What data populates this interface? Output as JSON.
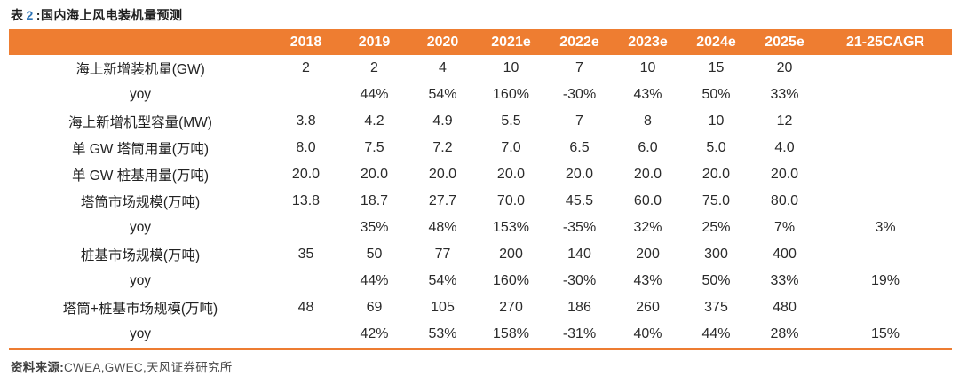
{
  "title": {
    "prefix": "表",
    "number": "2",
    "colon": ":",
    "text": "国内海上风电装机量预测"
  },
  "table": {
    "columns": [
      "2018",
      "2019",
      "2020",
      "2021e",
      "2022e",
      "2023e",
      "2024e",
      "2025e",
      "21-25CAGR"
    ],
    "rows": [
      {
        "label": "海上新增装机量(GW)",
        "values": [
          "2",
          "2",
          "4",
          "10",
          "7",
          "10",
          "15",
          "20",
          ""
        ]
      },
      {
        "label": "yoy",
        "values": [
          "",
          "44%",
          "54%",
          "160%",
          "-30%",
          "43%",
          "50%",
          "33%",
          ""
        ]
      },
      {
        "label": "海上新增机型容量(MW)",
        "values": [
          "3.8",
          "4.2",
          "4.9",
          "5.5",
          "7",
          "8",
          "10",
          "12",
          ""
        ]
      },
      {
        "label": "单 GW 塔筒用量(万吨)",
        "values": [
          "8.0",
          "7.5",
          "7.2",
          "7.0",
          "6.5",
          "6.0",
          "5.0",
          "4.0",
          ""
        ]
      },
      {
        "label": "单 GW 桩基用量(万吨)",
        "values": [
          "20.0",
          "20.0",
          "20.0",
          "20.0",
          "20.0",
          "20.0",
          "20.0",
          "20.0",
          ""
        ]
      },
      {
        "label": "塔筒市场规模(万吨)",
        "values": [
          "13.8",
          "18.7",
          "27.7",
          "70.0",
          "45.5",
          "60.0",
          "75.0",
          "80.0",
          ""
        ]
      },
      {
        "label": "yoy",
        "values": [
          "",
          "35%",
          "48%",
          "153%",
          "-35%",
          "32%",
          "25%",
          "7%",
          "3%"
        ]
      },
      {
        "label": "桩基市场规模(万吨)",
        "values": [
          "35",
          "50",
          "77",
          "200",
          "140",
          "200",
          "300",
          "400",
          ""
        ]
      },
      {
        "label": "yoy",
        "values": [
          "",
          "44%",
          "54%",
          "160%",
          "-30%",
          "43%",
          "50%",
          "33%",
          "19%"
        ]
      },
      {
        "label": "塔筒+桩基市场规模(万吨)",
        "values": [
          "48",
          "69",
          "105",
          "270",
          "186",
          "260",
          "375",
          "480",
          ""
        ]
      },
      {
        "label": "yoy",
        "values": [
          "",
          "42%",
          "53%",
          "158%",
          "-31%",
          "40%",
          "44%",
          "28%",
          "15%"
        ]
      }
    ]
  },
  "footer": {
    "label": "资料来源:",
    "text": "CWEA,GWEC,天风证券研究所"
  },
  "colors": {
    "header_bg": "#ee7d31",
    "header_text": "#ffffff",
    "title_number_blue": "#2e74b6",
    "body_text": "#2b2b2b",
    "bottom_rule": "#ed7c31"
  }
}
